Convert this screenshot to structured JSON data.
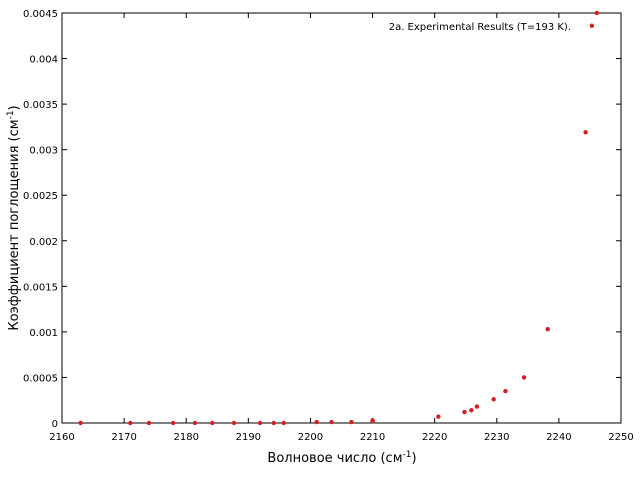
{
  "chart_data": {
    "type": "scatter",
    "title": "",
    "xlabel": "Волновое число (см",
    "xlabel_sup": "-1",
    "xlabel_end": ")",
    "ylabel": "Коэффициент поглощения (см",
    "ylabel_sup": "-1",
    "ylabel_end": ")",
    "xlim": [
      2160,
      2250
    ],
    "ylim": [
      0,
      0.0045
    ],
    "xticks": [
      "2160",
      "2170",
      "2180",
      "2190",
      "2200",
      "2210",
      "2220",
      "2230",
      "2240",
      "2250"
    ],
    "yticks": [
      "0",
      "0.0005",
      "0.001",
      "0.0015",
      "0.002",
      "0.0025",
      "0.003",
      "0.0035",
      "0.004",
      "0.0045"
    ],
    "grid": false,
    "legend_position": "top-right",
    "marker_color": "#d62020",
    "series": [
      {
        "name": "2a. Experimental Results (T=193 K).",
        "x": [
          2163.0,
          2171.0,
          2174.0,
          2177.9,
          2181.4,
          2184.2,
          2187.7,
          2191.9,
          2194.1,
          2195.7,
          2201.0,
          2203.4,
          2206.6,
          2210.0,
          2210.0,
          2220.6,
          2224.8,
          2225.9,
          2226.8,
          2229.5,
          2231.4,
          2234.4,
          2238.2,
          2244.3,
          2245.3,
          2246.1
        ],
        "y": [
          0.0,
          0.0,
          0.0,
          0.0,
          0.0,
          0.0,
          0.0,
          0.0,
          0.0,
          0.0,
          1e-05,
          1e-05,
          1e-05,
          2e-05,
          3e-05,
          7e-05,
          0.00012,
          0.00014,
          0.00018,
          0.00026,
          0.00035,
          0.0005,
          0.00103,
          0.00319,
          0.00436,
          0.0045
        ]
      }
    ]
  }
}
